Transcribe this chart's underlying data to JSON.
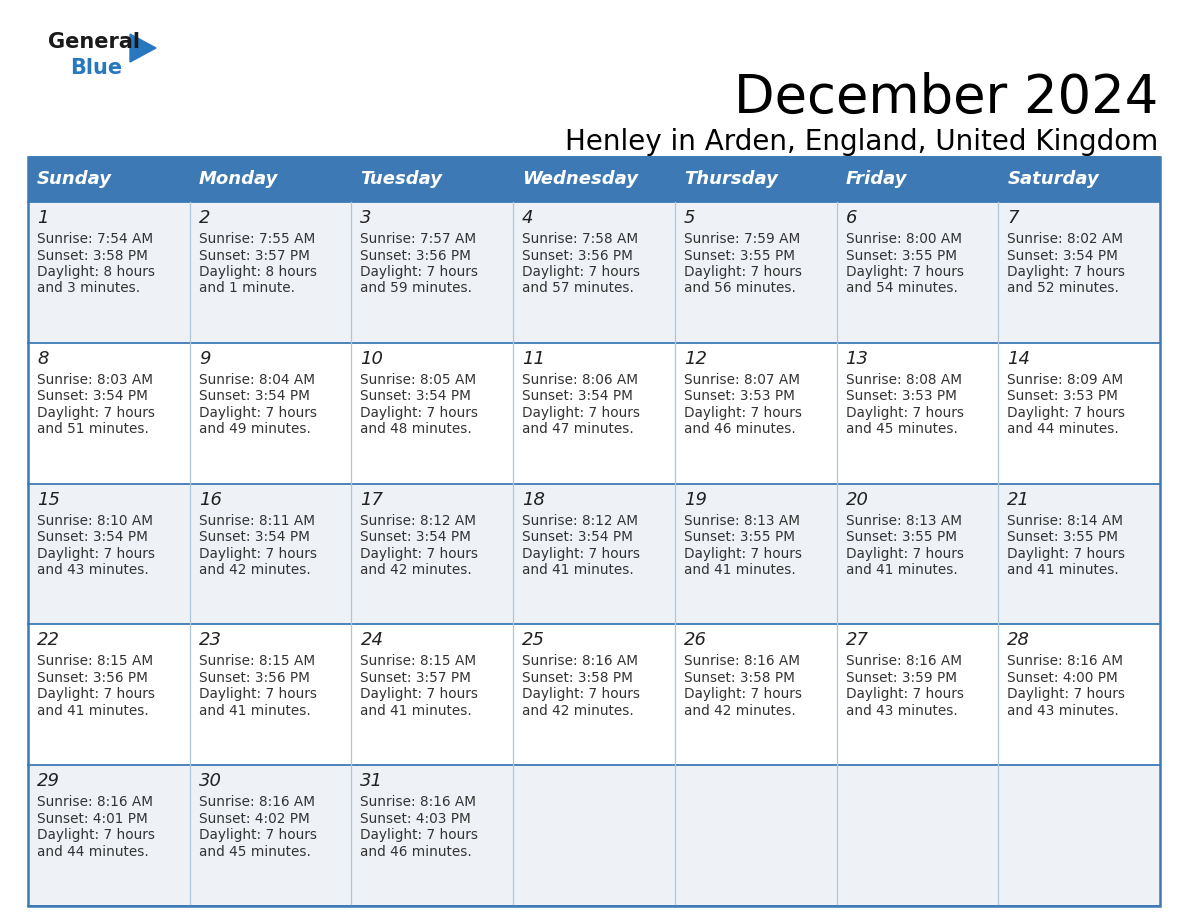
{
  "title": "December 2024",
  "subtitle": "Henley in Arden, England, United Kingdom",
  "header_color": "#3d7ab5",
  "header_text_color": "#ffffff",
  "cell_bg_even": "#eef2f7",
  "cell_bg_odd": "#ffffff",
  "text_color": "#333333",
  "day_names": [
    "Sunday",
    "Monday",
    "Tuesday",
    "Wednesday",
    "Thursday",
    "Friday",
    "Saturday"
  ],
  "title_fontsize": 38,
  "subtitle_fontsize": 20,
  "header_fontsize": 13,
  "day_num_fontsize": 13,
  "cell_fontsize": 9.8,
  "logo_general_color": "#1a1a1a",
  "logo_blue_color": "#2878c0",
  "border_color": "#3d7ab5",
  "divider_color": "#aec6d8",
  "days": [
    {
      "date": 1,
      "row": 0,
      "col": 0,
      "sunrise": "7:54 AM",
      "sunset": "3:58 PM",
      "dl_hours": "8 hours",
      "dl_rest": "and 3 minutes."
    },
    {
      "date": 2,
      "row": 0,
      "col": 1,
      "sunrise": "7:55 AM",
      "sunset": "3:57 PM",
      "dl_hours": "8 hours",
      "dl_rest": "and 1 minute."
    },
    {
      "date": 3,
      "row": 0,
      "col": 2,
      "sunrise": "7:57 AM",
      "sunset": "3:56 PM",
      "dl_hours": "7 hours",
      "dl_rest": "and 59 minutes."
    },
    {
      "date": 4,
      "row": 0,
      "col": 3,
      "sunrise": "7:58 AM",
      "sunset": "3:56 PM",
      "dl_hours": "7 hours",
      "dl_rest": "and 57 minutes."
    },
    {
      "date": 5,
      "row": 0,
      "col": 4,
      "sunrise": "7:59 AM",
      "sunset": "3:55 PM",
      "dl_hours": "7 hours",
      "dl_rest": "and 56 minutes."
    },
    {
      "date": 6,
      "row": 0,
      "col": 5,
      "sunrise": "8:00 AM",
      "sunset": "3:55 PM",
      "dl_hours": "7 hours",
      "dl_rest": "and 54 minutes."
    },
    {
      "date": 7,
      "row": 0,
      "col": 6,
      "sunrise": "8:02 AM",
      "sunset": "3:54 PM",
      "dl_hours": "7 hours",
      "dl_rest": "and 52 minutes."
    },
    {
      "date": 8,
      "row": 1,
      "col": 0,
      "sunrise": "8:03 AM",
      "sunset": "3:54 PM",
      "dl_hours": "7 hours",
      "dl_rest": "and 51 minutes."
    },
    {
      "date": 9,
      "row": 1,
      "col": 1,
      "sunrise": "8:04 AM",
      "sunset": "3:54 PM",
      "dl_hours": "7 hours",
      "dl_rest": "and 49 minutes."
    },
    {
      "date": 10,
      "row": 1,
      "col": 2,
      "sunrise": "8:05 AM",
      "sunset": "3:54 PM",
      "dl_hours": "7 hours",
      "dl_rest": "and 48 minutes."
    },
    {
      "date": 11,
      "row": 1,
      "col": 3,
      "sunrise": "8:06 AM",
      "sunset": "3:54 PM",
      "dl_hours": "7 hours",
      "dl_rest": "and 47 minutes."
    },
    {
      "date": 12,
      "row": 1,
      "col": 4,
      "sunrise": "8:07 AM",
      "sunset": "3:53 PM",
      "dl_hours": "7 hours",
      "dl_rest": "and 46 minutes."
    },
    {
      "date": 13,
      "row": 1,
      "col": 5,
      "sunrise": "8:08 AM",
      "sunset": "3:53 PM",
      "dl_hours": "7 hours",
      "dl_rest": "and 45 minutes."
    },
    {
      "date": 14,
      "row": 1,
      "col": 6,
      "sunrise": "8:09 AM",
      "sunset": "3:53 PM",
      "dl_hours": "7 hours",
      "dl_rest": "and 44 minutes."
    },
    {
      "date": 15,
      "row": 2,
      "col": 0,
      "sunrise": "8:10 AM",
      "sunset": "3:54 PM",
      "dl_hours": "7 hours",
      "dl_rest": "and 43 minutes."
    },
    {
      "date": 16,
      "row": 2,
      "col": 1,
      "sunrise": "8:11 AM",
      "sunset": "3:54 PM",
      "dl_hours": "7 hours",
      "dl_rest": "and 42 minutes."
    },
    {
      "date": 17,
      "row": 2,
      "col": 2,
      "sunrise": "8:12 AM",
      "sunset": "3:54 PM",
      "dl_hours": "7 hours",
      "dl_rest": "and 42 minutes."
    },
    {
      "date": 18,
      "row": 2,
      "col": 3,
      "sunrise": "8:12 AM",
      "sunset": "3:54 PM",
      "dl_hours": "7 hours",
      "dl_rest": "and 41 minutes."
    },
    {
      "date": 19,
      "row": 2,
      "col": 4,
      "sunrise": "8:13 AM",
      "sunset": "3:55 PM",
      "dl_hours": "7 hours",
      "dl_rest": "and 41 minutes."
    },
    {
      "date": 20,
      "row": 2,
      "col": 5,
      "sunrise": "8:13 AM",
      "sunset": "3:55 PM",
      "dl_hours": "7 hours",
      "dl_rest": "and 41 minutes."
    },
    {
      "date": 21,
      "row": 2,
      "col": 6,
      "sunrise": "8:14 AM",
      "sunset": "3:55 PM",
      "dl_hours": "7 hours",
      "dl_rest": "and 41 minutes."
    },
    {
      "date": 22,
      "row": 3,
      "col": 0,
      "sunrise": "8:15 AM",
      "sunset": "3:56 PM",
      "dl_hours": "7 hours",
      "dl_rest": "and 41 minutes."
    },
    {
      "date": 23,
      "row": 3,
      "col": 1,
      "sunrise": "8:15 AM",
      "sunset": "3:56 PM",
      "dl_hours": "7 hours",
      "dl_rest": "and 41 minutes."
    },
    {
      "date": 24,
      "row": 3,
      "col": 2,
      "sunrise": "8:15 AM",
      "sunset": "3:57 PM",
      "dl_hours": "7 hours",
      "dl_rest": "and 41 minutes."
    },
    {
      "date": 25,
      "row": 3,
      "col": 3,
      "sunrise": "8:16 AM",
      "sunset": "3:58 PM",
      "dl_hours": "7 hours",
      "dl_rest": "and 42 minutes."
    },
    {
      "date": 26,
      "row": 3,
      "col": 4,
      "sunrise": "8:16 AM",
      "sunset": "3:58 PM",
      "dl_hours": "7 hours",
      "dl_rest": "and 42 minutes."
    },
    {
      "date": 27,
      "row": 3,
      "col": 5,
      "sunrise": "8:16 AM",
      "sunset": "3:59 PM",
      "dl_hours": "7 hours",
      "dl_rest": "and 43 minutes."
    },
    {
      "date": 28,
      "row": 3,
      "col": 6,
      "sunrise": "8:16 AM",
      "sunset": "4:00 PM",
      "dl_hours": "7 hours",
      "dl_rest": "and 43 minutes."
    },
    {
      "date": 29,
      "row": 4,
      "col": 0,
      "sunrise": "8:16 AM",
      "sunset": "4:01 PM",
      "dl_hours": "7 hours",
      "dl_rest": "and 44 minutes."
    },
    {
      "date": 30,
      "row": 4,
      "col": 1,
      "sunrise": "8:16 AM",
      "sunset": "4:02 PM",
      "dl_hours": "7 hours",
      "dl_rest": "and 45 minutes."
    },
    {
      "date": 31,
      "row": 4,
      "col": 2,
      "sunrise": "8:16 AM",
      "sunset": "4:03 PM",
      "dl_hours": "7 hours",
      "dl_rest": "and 46 minutes."
    }
  ]
}
